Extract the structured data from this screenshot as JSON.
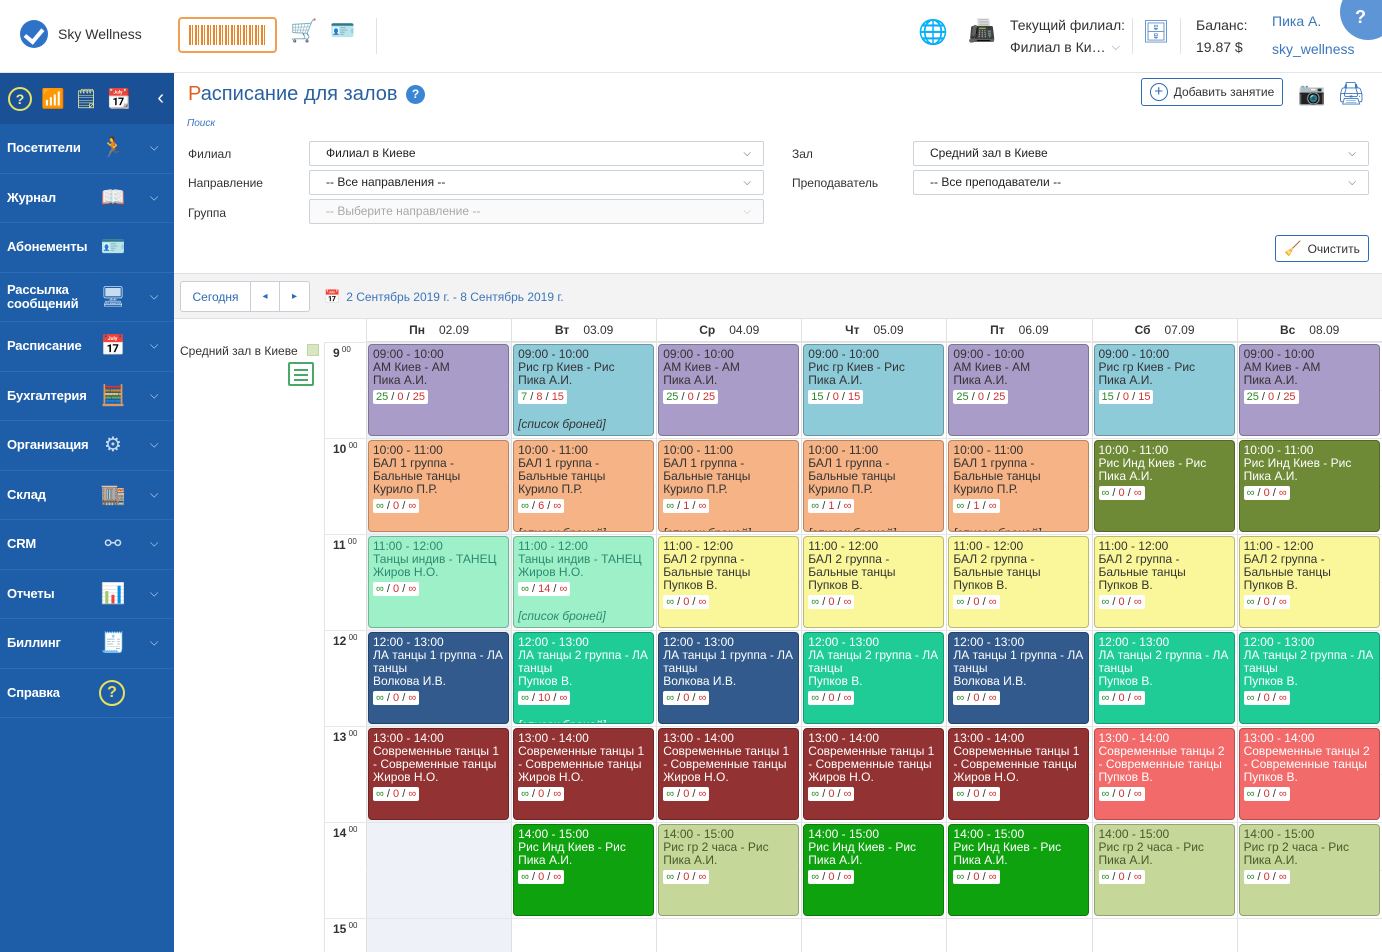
{
  "app": {
    "name": "Sky Wellness"
  },
  "header": {
    "branch_label": "Текущий филиал:",
    "branch_value": "Филиал в Ки…",
    "balance_label": "Баланс:",
    "balance_value": "19.87 $",
    "user_name": "Пика А.",
    "user_login": "sky_wellness",
    "help": "?"
  },
  "sidebar": {
    "items": [
      {
        "label": "Посетители",
        "icon": "running-person-icon",
        "glyph": "🏃",
        "chevron": true
      },
      {
        "label": "Журнал",
        "icon": "book-icon",
        "glyph": "📖",
        "chevron": true
      },
      {
        "label": "Абонементы",
        "icon": "id-card-icon",
        "glyph": "🪪",
        "chevron": false
      },
      {
        "label": "Рассылка сообщений",
        "icon": "messages-icon",
        "glyph": "🖥",
        "chevron": true
      },
      {
        "label": "Расписание",
        "icon": "calendar-clock-icon",
        "glyph": "📅",
        "chevron": true
      },
      {
        "label": "Бухгалтерия",
        "icon": "calculator-icon",
        "glyph": "🧮",
        "chevron": true
      },
      {
        "label": "Организация",
        "icon": "gear-icon",
        "glyph": "⚙",
        "chevron": true
      },
      {
        "label": "Склад",
        "icon": "warehouse-icon",
        "glyph": "🏬",
        "chevron": true
      },
      {
        "label": "CRM",
        "icon": "network-icon",
        "glyph": "⚯",
        "chevron": true
      },
      {
        "label": "Отчеты",
        "icon": "chart-icon",
        "glyph": "📊",
        "chevron": true
      },
      {
        "label": "Биллинг",
        "icon": "invoice-icon",
        "glyph": "🧾",
        "chevron": true
      },
      {
        "label": "Справка",
        "icon": "help-icon",
        "glyph": "?",
        "chevron": false
      }
    ]
  },
  "page": {
    "title_first": "Р",
    "title_rest": "асписание для залов",
    "search_link": "Поиск",
    "add_button": "Добавить занятие",
    "clear_button": "Очистить"
  },
  "filters": {
    "branch_label": "Филиал",
    "branch_value": "Филиал в Киеве",
    "direction_label": "Направление",
    "direction_value": "-- Все направления --",
    "group_label": "Группа",
    "group_placeholder": "-- Выберите направление --",
    "hall_label": "Зал",
    "hall_value": "Средний зал в Киеве",
    "teacher_label": "Преподаватель",
    "teacher_value": "-- Все преподаватели --"
  },
  "nav": {
    "today": "Сегодня",
    "prev": "◂",
    "next": "▸",
    "range": "2 Сентябрь 2019 г. - 8 Сентябрь 2019 г."
  },
  "calendar": {
    "room": "Средний зал в Киеве",
    "hours": [
      "9",
      "10",
      "11",
      "12",
      "13",
      "14",
      "15"
    ],
    "minutes": "00",
    "days": [
      {
        "name": "Пн",
        "date": "02.09"
      },
      {
        "name": "Вт",
        "date": "03.09"
      },
      {
        "name": "Ср",
        "date": "04.09"
      },
      {
        "name": "Чт",
        "date": "05.09"
      },
      {
        "name": "Пт",
        "date": "06.09"
      },
      {
        "name": "Сб",
        "date": "07.09"
      },
      {
        "name": "Вс",
        "date": "08.09"
      }
    ],
    "bookings_label": "[список броней]",
    "events": [
      {
        "day": 0,
        "hour": 0,
        "time": "09:00 - 10:00",
        "title": "АМ Киев - АМ",
        "teacher": "Пика А.И.",
        "cnt": [
          "25",
          "0",
          "25"
        ],
        "color": "#a99cc8",
        "tone": "light"
      },
      {
        "day": 1,
        "hour": 0,
        "time": "09:00 - 10:00",
        "title": "Рис гр Киев - Рис",
        "teacher": "Пика А.И.",
        "cnt": [
          "7",
          "8",
          "15"
        ],
        "color": "#8ecbd9",
        "tone": "light",
        "bookings": "full"
      },
      {
        "day": 2,
        "hour": 0,
        "time": "09:00 - 10:00",
        "title": "АМ Киев - АМ",
        "teacher": "Пика А.И.",
        "cnt": [
          "25",
          "0",
          "25"
        ],
        "color": "#a99cc8",
        "tone": "light"
      },
      {
        "day": 3,
        "hour": 0,
        "time": "09:00 - 10:00",
        "title": "Рис гр Киев - Рис",
        "teacher": "Пика А.И.",
        "cnt": [
          "15",
          "0",
          "15"
        ],
        "color": "#8ecbd9",
        "tone": "light"
      },
      {
        "day": 4,
        "hour": 0,
        "time": "09:00 - 10:00",
        "title": "АМ Киев - АМ",
        "teacher": "Пика А.И.",
        "cnt": [
          "25",
          "0",
          "25"
        ],
        "color": "#a99cc8",
        "tone": "light"
      },
      {
        "day": 5,
        "hour": 0,
        "time": "09:00 - 10:00",
        "title": "Рис гр Киев - Рис",
        "teacher": "Пика А.И.",
        "cnt": [
          "15",
          "0",
          "15"
        ],
        "color": "#8ecbd9",
        "tone": "light"
      },
      {
        "day": 6,
        "hour": 0,
        "time": "09:00 - 10:00",
        "title": "АМ Киев - АМ",
        "teacher": "Пика А.И.",
        "cnt": [
          "25",
          "0",
          "25"
        ],
        "color": "#a99cc8",
        "tone": "light"
      },
      {
        "day": 0,
        "hour": 1,
        "time": "10:00 - 11:00",
        "title": "БАЛ 1 группа - Бальные танцы",
        "teacher": "Курило П.Р.",
        "cnt": [
          "∞",
          "0",
          "∞"
        ],
        "color": "#f5b386",
        "tone": "light"
      },
      {
        "day": 1,
        "hour": 1,
        "time": "10:00 - 11:00",
        "title": "БАЛ 1 группа - Бальные танцы",
        "teacher": "Курило П.Р.",
        "cnt": [
          "∞",
          "6",
          "∞"
        ],
        "color": "#f5b386",
        "tone": "light",
        "bookings": "cut"
      },
      {
        "day": 2,
        "hour": 1,
        "time": "10:00 - 11:00",
        "title": "БАЛ 1 группа - Бальные танцы",
        "teacher": "Курило П.Р.",
        "cnt": [
          "∞",
          "1",
          "∞"
        ],
        "color": "#f5b386",
        "tone": "light",
        "bookings": "cut"
      },
      {
        "day": 3,
        "hour": 1,
        "time": "10:00 - 11:00",
        "title": "БАЛ 1 группа - Бальные танцы",
        "teacher": "Курило П.Р.",
        "cnt": [
          "∞",
          "1",
          "∞"
        ],
        "color": "#f5b386",
        "tone": "light",
        "bookings": "cut"
      },
      {
        "day": 4,
        "hour": 1,
        "time": "10:00 - 11:00",
        "title": "БАЛ 1 группа - Бальные танцы",
        "teacher": "Курило П.Р.",
        "cnt": [
          "∞",
          "1",
          "∞"
        ],
        "color": "#f5b386",
        "tone": "light",
        "bookings": "cut"
      },
      {
        "day": 5,
        "hour": 1,
        "time": "10:00 - 11:00",
        "title": "Рис Инд Киев - Рис",
        "teacher": "Пика А.И.",
        "cnt": [
          "∞",
          "0",
          "∞"
        ],
        "color": "#6e8a36",
        "tone": "dark"
      },
      {
        "day": 6,
        "hour": 1,
        "time": "10:00 - 11:00",
        "title": "Рис Инд Киев - Рис",
        "teacher": "Пика А.И.",
        "cnt": [
          "∞",
          "0",
          "∞"
        ],
        "color": "#6e8a36",
        "tone": "dark"
      },
      {
        "day": 0,
        "hour": 2,
        "time": "11:00 - 12:00",
        "title": "Танцы индив - ТАНЕЦ",
        "teacher": "Жиров Н.О.",
        "cnt": [
          "∞",
          "0",
          "∞"
        ],
        "color": "#9ef0c8",
        "tone": "teal"
      },
      {
        "day": 1,
        "hour": 2,
        "time": "11:00 - 12:00",
        "title": "Танцы индив - ТАНЕЦ",
        "teacher": "Жиров Н.О.",
        "cnt": [
          "∞",
          "14",
          "∞"
        ],
        "color": "#9ef0c8",
        "tone": "teal",
        "bookings": "full"
      },
      {
        "day": 2,
        "hour": 2,
        "time": "11:00 - 12:00",
        "title": "БАЛ 2 группа - Бальные танцы",
        "teacher": "Пупков В.",
        "cnt": [
          "∞",
          "0",
          "∞"
        ],
        "color": "#faf79a",
        "tone": "light"
      },
      {
        "day": 3,
        "hour": 2,
        "time": "11:00 - 12:00",
        "title": "БАЛ 2 группа - Бальные танцы",
        "teacher": "Пупков В.",
        "cnt": [
          "∞",
          "0",
          "∞"
        ],
        "color": "#faf79a",
        "tone": "light"
      },
      {
        "day": 4,
        "hour": 2,
        "time": "11:00 - 12:00",
        "title": "БАЛ 2 группа - Бальные танцы",
        "teacher": "Пупков В.",
        "cnt": [
          "∞",
          "0",
          "∞"
        ],
        "color": "#faf79a",
        "tone": "light"
      },
      {
        "day": 5,
        "hour": 2,
        "time": "11:00 - 12:00",
        "title": "БАЛ 2 группа - Бальные танцы",
        "teacher": "Пупков В.",
        "cnt": [
          "∞",
          "0",
          "∞"
        ],
        "color": "#faf79a",
        "tone": "light"
      },
      {
        "day": 6,
        "hour": 2,
        "time": "11:00 - 12:00",
        "title": "БАЛ 2 группа - Бальные танцы",
        "teacher": "Пупков В.",
        "cnt": [
          "∞",
          "0",
          "∞"
        ],
        "color": "#faf79a",
        "tone": "light"
      },
      {
        "day": 0,
        "hour": 3,
        "time": "12:00 - 13:00",
        "title": "ЛА танцы 1 группа - ЛА танцы",
        "teacher": "Волкова И.В.",
        "cnt": [
          "∞",
          "0",
          "∞"
        ],
        "color": "#325a8c",
        "tone": "dark"
      },
      {
        "day": 1,
        "hour": 3,
        "time": "12:00 - 13:00",
        "title": "ЛА танцы 2 группа - ЛА танцы",
        "teacher": "Пупков В.",
        "cnt": [
          "∞",
          "10",
          "∞"
        ],
        "color": "#1fcc96",
        "tone": "dark",
        "bookings": "cut"
      },
      {
        "day": 2,
        "hour": 3,
        "time": "12:00 - 13:00",
        "title": "ЛА танцы 1 группа - ЛА танцы",
        "teacher": "Волкова И.В.",
        "cnt": [
          "∞",
          "0",
          "∞"
        ],
        "color": "#325a8c",
        "tone": "dark"
      },
      {
        "day": 3,
        "hour": 3,
        "time": "12:00 - 13:00",
        "title": "ЛА танцы 2 группа - ЛА танцы",
        "teacher": "Пупков В.",
        "cnt": [
          "∞",
          "0",
          "∞"
        ],
        "color": "#1fcc96",
        "tone": "dark"
      },
      {
        "day": 4,
        "hour": 3,
        "time": "12:00 - 13:00",
        "title": "ЛА танцы 1 группа - ЛА танцы",
        "teacher": "Волкова И.В.",
        "cnt": [
          "∞",
          "0",
          "∞"
        ],
        "color": "#325a8c",
        "tone": "dark"
      },
      {
        "day": 5,
        "hour": 3,
        "time": "12:00 - 13:00",
        "title": "ЛА танцы 2 группа - ЛА танцы",
        "teacher": "Пупков В.",
        "cnt": [
          "∞",
          "0",
          "∞"
        ],
        "color": "#1fcc96",
        "tone": "dark"
      },
      {
        "day": 6,
        "hour": 3,
        "time": "12:00 - 13:00",
        "title": "ЛА танцы 2 группа - ЛА танцы",
        "teacher": "Пупков В.",
        "cnt": [
          "∞",
          "0",
          "∞"
        ],
        "color": "#1fcc96",
        "tone": "dark"
      },
      {
        "day": 0,
        "hour": 4,
        "time": "13:00 - 14:00",
        "title": "Современные танцы 1 - Современные танцы",
        "teacher": "Жиров Н.О.",
        "cnt": [
          "∞",
          "0",
          "∞"
        ],
        "color": "#933232",
        "tone": "dark"
      },
      {
        "day": 1,
        "hour": 4,
        "time": "13:00 - 14:00",
        "title": "Современные танцы 1 - Современные танцы",
        "teacher": "Жиров Н.О.",
        "cnt": [
          "∞",
          "0",
          "∞"
        ],
        "color": "#933232",
        "tone": "dark"
      },
      {
        "day": 2,
        "hour": 4,
        "time": "13:00 - 14:00",
        "title": "Современные танцы 1 - Современные танцы",
        "teacher": "Жиров Н.О.",
        "cnt": [
          "∞",
          "0",
          "∞"
        ],
        "color": "#933232",
        "tone": "dark"
      },
      {
        "day": 3,
        "hour": 4,
        "time": "13:00 - 14:00",
        "title": "Современные танцы 1 - Современные танцы",
        "teacher": "Жиров Н.О.",
        "cnt": [
          "∞",
          "0",
          "∞"
        ],
        "color": "#933232",
        "tone": "dark"
      },
      {
        "day": 4,
        "hour": 4,
        "time": "13:00 - 14:00",
        "title": "Современные танцы 1 - Современные танцы",
        "teacher": "Жиров Н.О.",
        "cnt": [
          "∞",
          "0",
          "∞"
        ],
        "color": "#933232",
        "tone": "dark"
      },
      {
        "day": 5,
        "hour": 4,
        "time": "13:00 - 14:00",
        "title": "Современные танцы 2 - Современные танцы",
        "teacher": "Пупков В.",
        "cnt": [
          "∞",
          "0",
          "∞"
        ],
        "color": "#f26a6a",
        "tone": "dark"
      },
      {
        "day": 6,
        "hour": 4,
        "time": "13:00 - 14:00",
        "title": "Современные танцы 2 - Современные танцы",
        "teacher": "Пупков В.",
        "cnt": [
          "∞",
          "0",
          "∞"
        ],
        "color": "#f26a6a",
        "tone": "dark"
      },
      {
        "day": 1,
        "hour": 5,
        "time": "14:00 - 15:00",
        "title": "Рис Инд Киев - Рис",
        "teacher": "Пика А.И.",
        "cnt": [
          "∞",
          "0",
          "∞"
        ],
        "color": "#0fa20f",
        "tone": "dark"
      },
      {
        "day": 2,
        "hour": 5,
        "time": "14:00 - 15:00",
        "title": "Рис гр 2 часа - Рис",
        "teacher": "Пика А.И.",
        "cnt": [
          "∞",
          "0",
          "∞"
        ],
        "color": "#c5d89a",
        "tone": "olive"
      },
      {
        "day": 3,
        "hour": 5,
        "time": "14:00 - 15:00",
        "title": "Рис Инд Киев - Рис",
        "teacher": "Пика А.И.",
        "cnt": [
          "∞",
          "0",
          "∞"
        ],
        "color": "#0fa20f",
        "tone": "dark"
      },
      {
        "day": 4,
        "hour": 5,
        "time": "14:00 - 15:00",
        "title": "Рис Инд Киев - Рис",
        "teacher": "Пика А.И.",
        "cnt": [
          "∞",
          "0",
          "∞"
        ],
        "color": "#0fa20f",
        "tone": "dark"
      },
      {
        "day": 5,
        "hour": 5,
        "time": "14:00 - 15:00",
        "title": "Рис гр 2 часа - Рис",
        "teacher": "Пика А.И.",
        "cnt": [
          "∞",
          "0",
          "∞"
        ],
        "color": "#c5d89a",
        "tone": "olive"
      },
      {
        "day": 6,
        "hour": 5,
        "time": "14:00 - 15:00",
        "title": "Рис гр 2 часа - Рис",
        "teacher": "Пика А.И.",
        "cnt": [
          "∞",
          "0",
          "∞"
        ],
        "color": "#c5d89a",
        "tone": "olive"
      }
    ]
  }
}
